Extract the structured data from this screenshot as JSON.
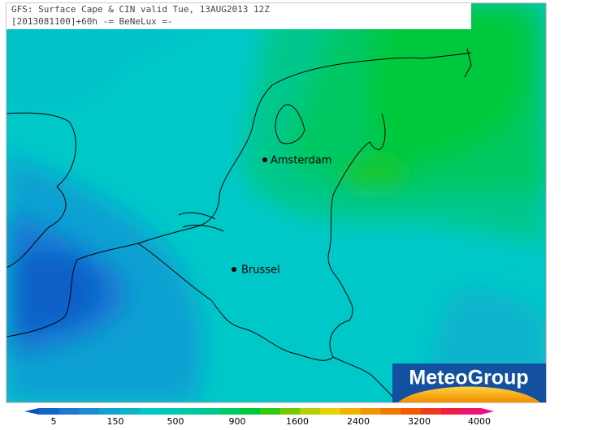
{
  "header": {
    "title": "GFS: Surface Cape & CIN valid Tue, 13AUG2013 12Z",
    "subtitle": "[2013081100]+60h -= BeNeLux =-"
  },
  "cities": [
    {
      "label": "Amsterdam"
    },
    {
      "label": "Brussel"
    }
  ],
  "colorbar": {
    "labels": [
      5,
      150,
      500,
      900,
      1600,
      2400,
      3200,
      4000
    ]
  },
  "logo": {
    "text": "MeteoGroup"
  }
}
